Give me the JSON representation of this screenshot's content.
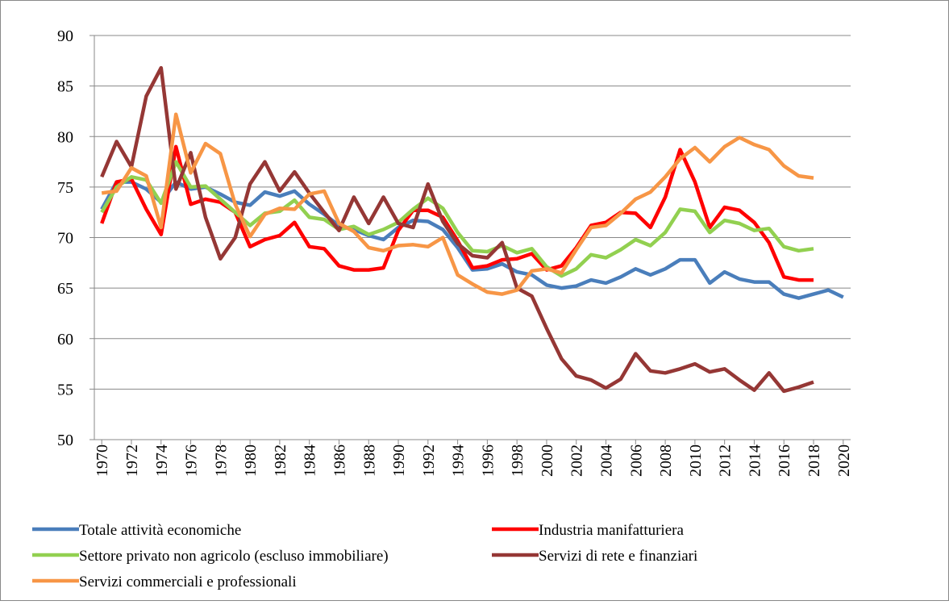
{
  "chart_data": {
    "type": "line",
    "x": [
      1970,
      1971,
      1972,
      1973,
      1974,
      1975,
      1976,
      1977,
      1978,
      1979,
      1980,
      1981,
      1982,
      1983,
      1984,
      1985,
      1986,
      1987,
      1988,
      1989,
      1990,
      1991,
      1992,
      1993,
      1994,
      1995,
      1996,
      1997,
      1998,
      1999,
      2000,
      2001,
      2002,
      2003,
      2004,
      2005,
      2006,
      2007,
      2008,
      2009,
      2010,
      2011,
      2012,
      2013,
      2014,
      2015,
      2016,
      2017,
      2018,
      2019,
      2020
    ],
    "xlim": [
      1969.5,
      2020.5
    ],
    "xticks": [
      1970,
      1972,
      1974,
      1976,
      1978,
      1980,
      1982,
      1984,
      1986,
      1988,
      1990,
      1992,
      1994,
      1996,
      1998,
      2000,
      2002,
      2004,
      2006,
      2008,
      2010,
      2012,
      2014,
      2016,
      2018,
      2020
    ],
    "ylim": [
      50,
      90
    ],
    "yticks": [
      50,
      55,
      60,
      65,
      70,
      75,
      80,
      85,
      90
    ],
    "grid": true,
    "series": [
      {
        "name": "Totale attività economiche",
        "color": "#4a7ebb",
        "values": [
          72.8,
          75.5,
          75.5,
          74.8,
          73.5,
          75.5,
          74.8,
          75.0,
          74.3,
          73.5,
          73.2,
          74.5,
          74.1,
          74.6,
          73.3,
          72.3,
          71.2,
          70.8,
          70.2,
          69.8,
          71.0,
          71.7,
          71.6,
          70.8,
          69.0,
          66.8,
          66.9,
          67.4,
          66.6,
          66.3,
          65.3,
          65.0,
          65.2,
          65.8,
          65.5,
          66.1,
          66.9,
          66.3,
          66.9,
          67.8,
          67.8,
          65.5,
          66.6,
          65.9,
          65.6,
          65.6,
          64.4,
          64.0,
          64.4,
          64.8,
          64.1
        ]
      },
      {
        "name": "Industria manifatturiera",
        "color": "#ff0000",
        "values": [
          71.4,
          75.5,
          75.8,
          72.8,
          70.3,
          79.0,
          73.3,
          73.8,
          73.5,
          72.5,
          69.1,
          69.8,
          70.2,
          71.5,
          69.1,
          68.9,
          67.2,
          66.8,
          66.8,
          67.0,
          70.7,
          72.7,
          72.7,
          72.0,
          69.7,
          67.0,
          67.2,
          67.8,
          67.9,
          68.4,
          66.8,
          67.2,
          69.0,
          71.2,
          71.5,
          72.5,
          72.4,
          71.0,
          74.0,
          78.7,
          75.5,
          71.0,
          73.0,
          72.7,
          71.5,
          69.5,
          66.1,
          65.8,
          65.8,
          null,
          null
        ]
      },
      {
        "name": "Settore privato non agricolo (escluso immobiliare)",
        "color": "#92d050",
        "values": [
          72.5,
          75.0,
          76.0,
          75.7,
          73.4,
          77.5,
          75.0,
          75.1,
          73.8,
          72.5,
          71.2,
          72.4,
          72.6,
          73.7,
          72.0,
          71.8,
          70.8,
          71.1,
          70.3,
          70.8,
          71.5,
          72.8,
          73.9,
          72.9,
          70.5,
          68.7,
          68.6,
          69.2,
          68.5,
          68.9,
          67.1,
          66.2,
          66.9,
          68.3,
          68.0,
          68.8,
          69.8,
          69.2,
          70.5,
          72.8,
          72.6,
          70.5,
          71.7,
          71.4,
          70.7,
          70.9,
          69.1,
          68.7,
          68.9,
          null,
          null
        ]
      },
      {
        "name": "Servizi di rete e finanziari",
        "color": "#953735",
        "values": [
          76.0,
          79.5,
          77.0,
          84.0,
          86.8,
          74.8,
          78.4,
          72.0,
          67.9,
          70.0,
          75.3,
          77.5,
          74.6,
          76.5,
          74.4,
          72.5,
          70.7,
          74.0,
          71.4,
          74.0,
          71.4,
          71.0,
          75.3,
          71.6,
          69.4,
          68.2,
          68.0,
          69.5,
          65.0,
          64.2,
          61.0,
          58.0,
          56.3,
          55.9,
          55.1,
          56.0,
          58.5,
          56.8,
          56.6,
          57.0,
          57.5,
          56.7,
          57.0,
          55.9,
          54.9,
          56.6,
          54.8,
          55.2,
          55.7,
          null,
          null
        ]
      },
      {
        "name": "Servizi commerciali e professionali",
        "color": "#f79646",
        "values": [
          74.4,
          74.6,
          76.9,
          76.1,
          71.0,
          82.2,
          76.4,
          79.3,
          78.3,
          73.3,
          70.1,
          72.3,
          72.9,
          72.8,
          74.3,
          74.6,
          71.4,
          70.6,
          69.0,
          68.7,
          69.2,
          69.3,
          69.1,
          70.0,
          66.3,
          65.4,
          64.6,
          64.4,
          64.8,
          66.7,
          66.9,
          66.5,
          68.8,
          71.0,
          71.2,
          72.4,
          73.8,
          74.5,
          76.0,
          77.8,
          78.9,
          77.5,
          79.0,
          79.9,
          79.2,
          78.7,
          77.1,
          76.1,
          75.9,
          null,
          null
        ]
      }
    ]
  }
}
